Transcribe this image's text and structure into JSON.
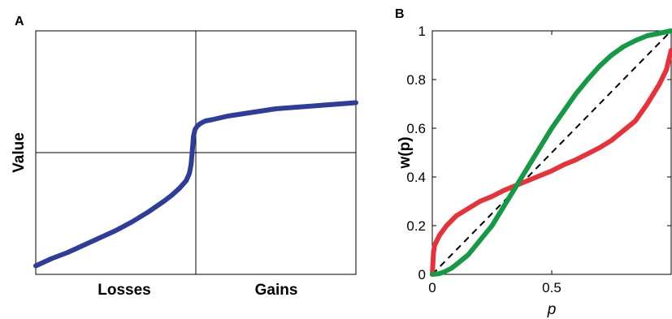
{
  "chart_data": [
    {
      "panel": "A",
      "type": "line",
      "ylabel": "Value",
      "x_category_labels": [
        "Losses",
        "Gains"
      ],
      "xlim": [
        -1,
        1
      ],
      "ylim": [
        -1,
        1
      ],
      "grid": false,
      "ticks_shown": false,
      "reference_lines": [
        {
          "axis": "x",
          "value": 0
        },
        {
          "axis": "y",
          "value": 0
        }
      ],
      "series": [
        {
          "color": "#2e3d9c",
          "points": [
            [
              -1.0,
              -0.93
            ],
            [
              -0.9,
              -0.87
            ],
            [
              -0.8,
              -0.82
            ],
            [
              -0.7,
              -0.76
            ],
            [
              -0.6,
              -0.7
            ],
            [
              -0.5,
              -0.64
            ],
            [
              -0.4,
              -0.57
            ],
            [
              -0.3,
              -0.49
            ],
            [
              -0.2,
              -0.4
            ],
            [
              -0.15,
              -0.35
            ],
            [
              -0.1,
              -0.29
            ],
            [
              -0.06,
              -0.23
            ],
            [
              -0.04,
              -0.17
            ],
            [
              -0.03,
              -0.1
            ],
            [
              -0.025,
              -0.03
            ],
            [
              -0.02,
              0.05
            ],
            [
              -0.015,
              0.13
            ],
            [
              -0.005,
              0.19
            ],
            [
              0.01,
              0.22
            ],
            [
              0.03,
              0.24
            ],
            [
              0.06,
              0.26
            ],
            [
              0.1,
              0.27
            ],
            [
              0.2,
              0.3
            ],
            [
              0.3,
              0.32
            ],
            [
              0.4,
              0.34
            ],
            [
              0.5,
              0.36
            ],
            [
              0.6,
              0.37
            ],
            [
              0.7,
              0.38
            ],
            [
              0.8,
              0.39
            ],
            [
              0.9,
              0.4
            ],
            [
              1.0,
              0.41
            ]
          ]
        }
      ]
    },
    {
      "panel": "B",
      "type": "line",
      "xlabel": "p",
      "ylabel": "w(p)",
      "xlim": [
        0,
        1
      ],
      "ylim": [
        0,
        1
      ],
      "xticks": [
        0,
        0.5
      ],
      "xtick_labels": [
        "0",
        "0.5"
      ],
      "yticks": [
        0,
        0.2,
        0.4,
        0.6,
        0.8,
        1
      ],
      "ytick_labels": [
        "0",
        "0.2",
        "0.4",
        "0.6",
        "0.8",
        "1"
      ],
      "grid": false,
      "series": [
        {
          "color": "#e8323a",
          "points": [
            [
              0.0,
              0.0
            ],
            [
              0.005,
              0.09
            ],
            [
              0.01,
              0.12
            ],
            [
              0.03,
              0.16
            ],
            [
              0.06,
              0.2
            ],
            [
              0.1,
              0.24
            ],
            [
              0.15,
              0.27
            ],
            [
              0.2,
              0.3
            ],
            [
              0.25,
              0.32
            ],
            [
              0.3,
              0.345
            ],
            [
              0.35,
              0.365
            ],
            [
              0.4,
              0.385
            ],
            [
              0.45,
              0.405
            ],
            [
              0.5,
              0.425
            ],
            [
              0.55,
              0.45
            ],
            [
              0.6,
              0.47
            ],
            [
              0.65,
              0.495
            ],
            [
              0.7,
              0.52
            ],
            [
              0.75,
              0.55
            ],
            [
              0.8,
              0.59
            ],
            [
              0.85,
              0.63
            ],
            [
              0.9,
              0.7
            ],
            [
              0.95,
              0.78
            ],
            [
              0.98,
              0.84
            ],
            [
              1.0,
              0.92
            ]
          ]
        },
        {
          "color": "#159a43",
          "points": [
            [
              0.0,
              0.0
            ],
            [
              0.03,
              0.003
            ],
            [
              0.05,
              0.01
            ],
            [
              0.08,
              0.025
            ],
            [
              0.1,
              0.04
            ],
            [
              0.15,
              0.08
            ],
            [
              0.2,
              0.14
            ],
            [
              0.25,
              0.2
            ],
            [
              0.3,
              0.28
            ],
            [
              0.35,
              0.36
            ],
            [
              0.4,
              0.44
            ],
            [
              0.45,
              0.52
            ],
            [
              0.5,
              0.6
            ],
            [
              0.55,
              0.67
            ],
            [
              0.6,
              0.74
            ],
            [
              0.65,
              0.8
            ],
            [
              0.7,
              0.855
            ],
            [
              0.75,
              0.9
            ],
            [
              0.8,
              0.935
            ],
            [
              0.85,
              0.96
            ],
            [
              0.9,
              0.98
            ],
            [
              0.95,
              0.99
            ],
            [
              1.0,
              1.0
            ]
          ]
        },
        {
          "color": "#000000",
          "style": "dashed",
          "points": [
            [
              0,
              0
            ],
            [
              1,
              1
            ]
          ]
        }
      ]
    }
  ]
}
